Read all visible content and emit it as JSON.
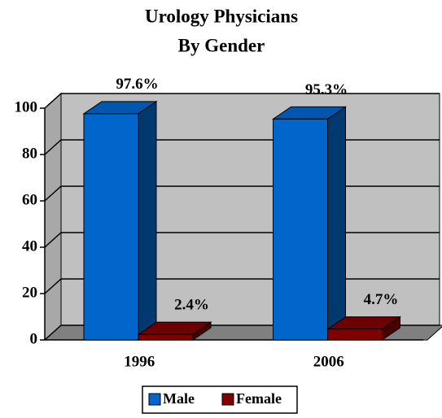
{
  "chart_data": {
    "type": "bar3d",
    "title": [
      "Urology Physicians",
      "By Gender"
    ],
    "categories": [
      "1996",
      "2006"
    ],
    "series": [
      {
        "name": "Male",
        "color": "#0066cc",
        "values": [
          97.6,
          95.3
        ],
        "value_labels": [
          "97.6%",
          "95.3%"
        ]
      },
      {
        "name": "Female",
        "color": "#800000",
        "values": [
          2.4,
          4.7
        ],
        "value_labels": [
          "2.4%",
          "4.7%"
        ]
      }
    ],
    "ylim": [
      0,
      100
    ],
    "yticks": [
      0,
      20,
      40,
      60,
      80,
      100
    ],
    "grid": true
  }
}
